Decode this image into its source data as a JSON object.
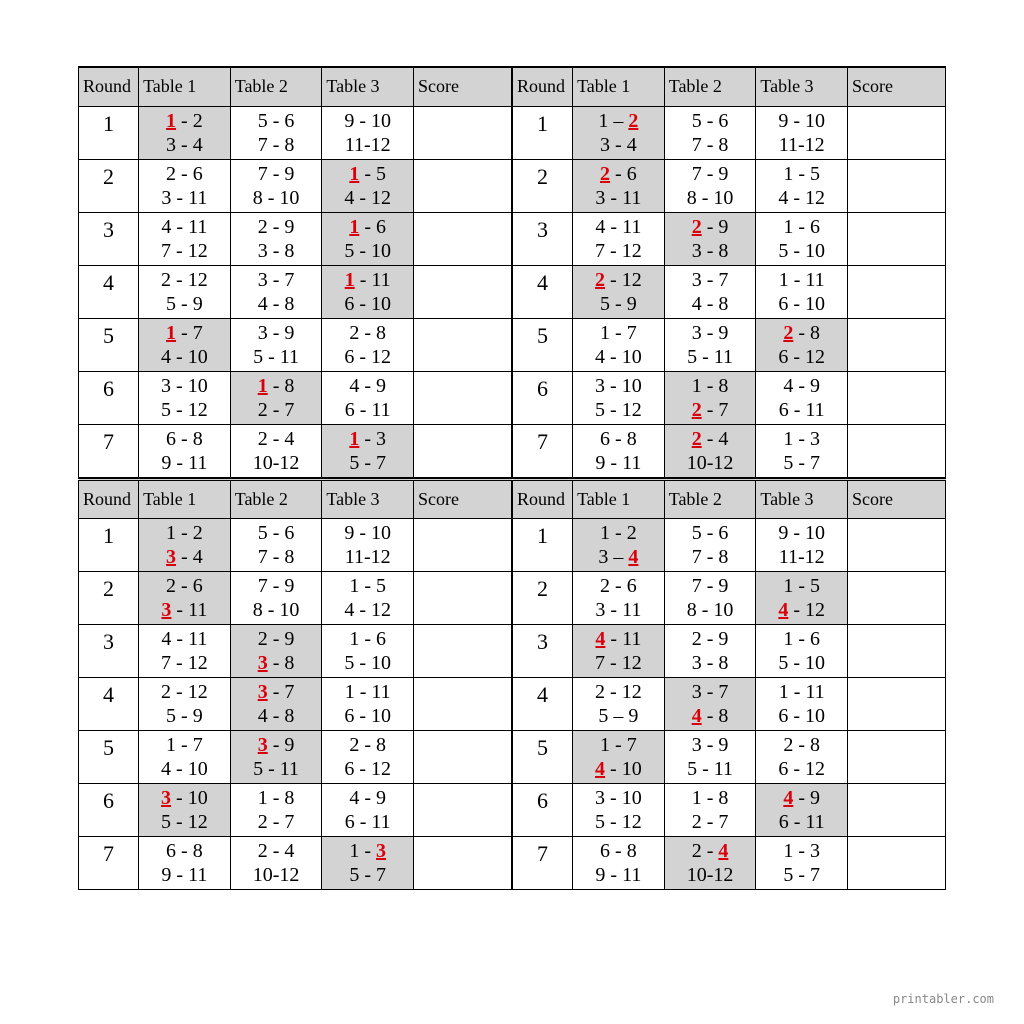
{
  "meta": {
    "footer": "printabler.com",
    "header_bg": "#d3d3d3",
    "highlight_bg": "#d3d3d3",
    "player_color": "#d9000b",
    "border_color": "#000000"
  },
  "headers": {
    "round": "Round",
    "t1": "Table 1",
    "t2": "Table 2",
    "t3": "Table 3",
    "score": "Score"
  },
  "cards": [
    {
      "player": "1",
      "rounds": [
        {
          "n": "1",
          "t1": {
            "a": "1 - 2",
            "b": "3 - 4",
            "hi": true,
            "bold": "1",
            "pos": "a1"
          },
          "t2": {
            "a": "5 - 6",
            "b": "7 - 8"
          },
          "t3": {
            "a": "9 - 10",
            "b": "11-12"
          }
        },
        {
          "n": "2",
          "t1": {
            "a": "2 - 6",
            "b": "3 - 11"
          },
          "t2": {
            "a": "7 - 9",
            "b": "8 - 10"
          },
          "t3": {
            "a": "1 - 5",
            "b": "4 - 12",
            "hi": true,
            "bold": "1",
            "pos": "a1"
          }
        },
        {
          "n": "3",
          "t1": {
            "a": "4 - 11",
            "b": "7 - 12"
          },
          "t2": {
            "a": "2 - 9",
            "b": "3 - 8"
          },
          "t3": {
            "a": "1 - 6",
            "b": "5 - 10",
            "hi": true,
            "bold": "1",
            "pos": "a1"
          }
        },
        {
          "n": "4",
          "t1": {
            "a": "2 - 12",
            "b": "5 - 9"
          },
          "t2": {
            "a": "3 - 7",
            "b": "4 - 8"
          },
          "t3": {
            "a": "1 - 11",
            "b": "6 - 10",
            "hi": true,
            "bold": "1",
            "pos": "a1"
          }
        },
        {
          "n": "5",
          "t1": {
            "a": "1 - 7",
            "b": "4 - 10",
            "hi": true,
            "bold": "1",
            "pos": "a1"
          },
          "t2": {
            "a": "3 - 9",
            "b": "5 - 11"
          },
          "t3": {
            "a": "2 - 8",
            "b": "6 - 12"
          }
        },
        {
          "n": "6",
          "t1": {
            "a": "3 - 10",
            "b": "5 - 12"
          },
          "t2": {
            "a": "1 - 8",
            "b": "2 - 7",
            "hi": true,
            "bold": "1",
            "pos": "a1"
          },
          "t3": {
            "a": "4 - 9",
            "b": "6 - 11"
          }
        },
        {
          "n": "7",
          "t1": {
            "a": "6 - 8",
            "b": "9 - 11"
          },
          "t2": {
            "a": "2 - 4",
            "b": "10-12"
          },
          "t3": {
            "a": "1 - 3",
            "b": "5 - 7",
            "hi": true,
            "bold": "1",
            "pos": "a1"
          }
        }
      ]
    },
    {
      "player": "2",
      "rounds": [
        {
          "n": "1",
          "t1": {
            "a": "1 – 2",
            "b": "3 - 4",
            "hi": true,
            "bold": "2",
            "pos": "a2"
          },
          "t2": {
            "a": "5 - 6",
            "b": "7 - 8"
          },
          "t3": {
            "a": "9 - 10",
            "b": "11-12"
          }
        },
        {
          "n": "2",
          "t1": {
            "a": "2 - 6",
            "b": "3 - 11",
            "hi": true,
            "bold": "2",
            "pos": "a1"
          },
          "t2": {
            "a": "7 - 9",
            "b": "8 - 10"
          },
          "t3": {
            "a": "1 - 5",
            "b": "4 - 12"
          }
        },
        {
          "n": "3",
          "t1": {
            "a": "4 - 11",
            "b": "7 - 12"
          },
          "t2": {
            "a": "2 - 9",
            "b": "3 - 8",
            "hi": true,
            "bold": "2",
            "pos": "a1"
          },
          "t3": {
            "a": "1 - 6",
            "b": "5 - 10"
          }
        },
        {
          "n": "4",
          "t1": {
            "a": "2 - 12",
            "b": "5 - 9",
            "hi": true,
            "bold": "2",
            "pos": "a1"
          },
          "t2": {
            "a": "3 - 7",
            "b": "4 - 8"
          },
          "t3": {
            "a": "1 - 11",
            "b": "6 - 10"
          }
        },
        {
          "n": "5",
          "t1": {
            "a": "1 - 7",
            "b": "4 - 10"
          },
          "t2": {
            "a": "3 - 9",
            "b": "5 - 11"
          },
          "t3": {
            "a": "2 - 8",
            "b": "6 - 12",
            "hi": true,
            "bold": "2",
            "pos": "a1"
          }
        },
        {
          "n": "6",
          "t1": {
            "a": "3 - 10",
            "b": "5 - 12"
          },
          "t2": {
            "a": "1 - 8",
            "b": "2 - 7",
            "hi": true,
            "bold": "2",
            "pos": "b1"
          },
          "t3": {
            "a": "4 - 9",
            "b": "6 - 11"
          }
        },
        {
          "n": "7",
          "t1": {
            "a": "6 - 8",
            "b": "9 - 11"
          },
          "t2": {
            "a": "2 - 4",
            "b": "10-12",
            "hi": true,
            "bold": "2",
            "pos": "a1"
          },
          "t3": {
            "a": "1 - 3",
            "b": "5 - 7"
          }
        }
      ]
    },
    {
      "player": "3",
      "rounds": [
        {
          "n": "1",
          "t1": {
            "a": "1 - 2",
            "b": "3 - 4",
            "hi": true,
            "bold": "3",
            "pos": "b1"
          },
          "t2": {
            "a": "5 - 6",
            "b": "7 - 8"
          },
          "t3": {
            "a": "9 - 10",
            "b": "11-12"
          }
        },
        {
          "n": "2",
          "t1": {
            "a": "2 - 6",
            "b": "3 - 11",
            "hi": true,
            "bold": "3",
            "pos": "b1"
          },
          "t2": {
            "a": "7 - 9",
            "b": "8 - 10"
          },
          "t3": {
            "a": "1 - 5",
            "b": "4 - 12"
          }
        },
        {
          "n": "3",
          "t1": {
            "a": "4 - 11",
            "b": "7 - 12"
          },
          "t2": {
            "a": "2 - 9",
            "b": "3 - 8",
            "hi": true,
            "bold": "3",
            "pos": "b1"
          },
          "t3": {
            "a": "1 - 6",
            "b": "5 - 10"
          }
        },
        {
          "n": "4",
          "t1": {
            "a": "2 - 12",
            "b": "5 - 9"
          },
          "t2": {
            "a": "3 - 7",
            "b": "4 - 8",
            "hi": true,
            "bold": "3",
            "pos": "a1"
          },
          "t3": {
            "a": "1 - 11",
            "b": "6 - 10"
          }
        },
        {
          "n": "5",
          "t1": {
            "a": "1 - 7",
            "b": "4 - 10"
          },
          "t2": {
            "a": "3 - 9",
            "b": "5 - 11",
            "hi": true,
            "bold": "3",
            "pos": "a1"
          },
          "t3": {
            "a": "2 - 8",
            "b": "6 - 12"
          }
        },
        {
          "n": "6",
          "t1": {
            "a": "3 - 10",
            "b": "5 - 12",
            "hi": true,
            "bold": "3",
            "pos": "a1"
          },
          "t2": {
            "a": "1 - 8",
            "b": "2 - 7"
          },
          "t3": {
            "a": "4 - 9",
            "b": "6 - 11"
          }
        },
        {
          "n": "7",
          "t1": {
            "a": "6 - 8",
            "b": "9 - 11"
          },
          "t2": {
            "a": "2 - 4",
            "b": "10-12"
          },
          "t3": {
            "a": "1 - 3",
            "b": "5 - 7",
            "hi": true,
            "bold": "3",
            "pos": "a2"
          }
        }
      ]
    },
    {
      "player": "4",
      "rounds": [
        {
          "n": "1",
          "t1": {
            "a": "1 - 2",
            "b": "3 – 4",
            "hi": true,
            "bold": "4",
            "pos": "b2"
          },
          "t2": {
            "a": "5 - 6",
            "b": "7 - 8"
          },
          "t3": {
            "a": "9 - 10",
            "b": "11-12"
          }
        },
        {
          "n": "2",
          "t1": {
            "a": "2 - 6",
            "b": "3 - 11"
          },
          "t2": {
            "a": "7 - 9",
            "b": "8 - 10"
          },
          "t3": {
            "a": "1 - 5",
            "b": "4 - 12",
            "hi": true,
            "bold": "4",
            "pos": "b1"
          }
        },
        {
          "n": "3",
          "t1": {
            "a": "4 - 11",
            "b": "7 - 12",
            "hi": true,
            "bold": "4",
            "pos": "a1"
          },
          "t2": {
            "a": "2 - 9",
            "b": "3 - 8"
          },
          "t3": {
            "a": "1 - 6",
            "b": "5 - 10"
          }
        },
        {
          "n": "4",
          "t1": {
            "a": "2 - 12",
            "b": "5 – 9"
          },
          "t2": {
            "a": "3 - 7",
            "b": "4 - 8",
            "hi": true,
            "bold": "4",
            "pos": "b1"
          },
          "t3": {
            "a": "1 - 11",
            "b": "6 - 10"
          }
        },
        {
          "n": "5",
          "t1": {
            "a": "1 - 7",
            "b": "4 - 10",
            "hi": true,
            "bold": "4",
            "pos": "b1"
          },
          "t2": {
            "a": "3 - 9",
            "b": "5 - 11"
          },
          "t3": {
            "a": "2 - 8",
            "b": "6 - 12"
          }
        },
        {
          "n": "6",
          "t1": {
            "a": "3 - 10",
            "b": "5 - 12"
          },
          "t2": {
            "a": "1 - 8",
            "b": "2 - 7"
          },
          "t3": {
            "a": "4 - 9",
            "b": "6 - 11",
            "hi": true,
            "bold": "4",
            "pos": "a1"
          }
        },
        {
          "n": "7",
          "t1": {
            "a": "6 - 8",
            "b": "9 - 11"
          },
          "t2": {
            "a": "2 - 4",
            "b": "10-12",
            "hi": true,
            "bold": "4",
            "pos": "a2"
          },
          "t3": {
            "a": "1 - 3",
            "b": "5 - 7"
          }
        }
      ]
    }
  ]
}
